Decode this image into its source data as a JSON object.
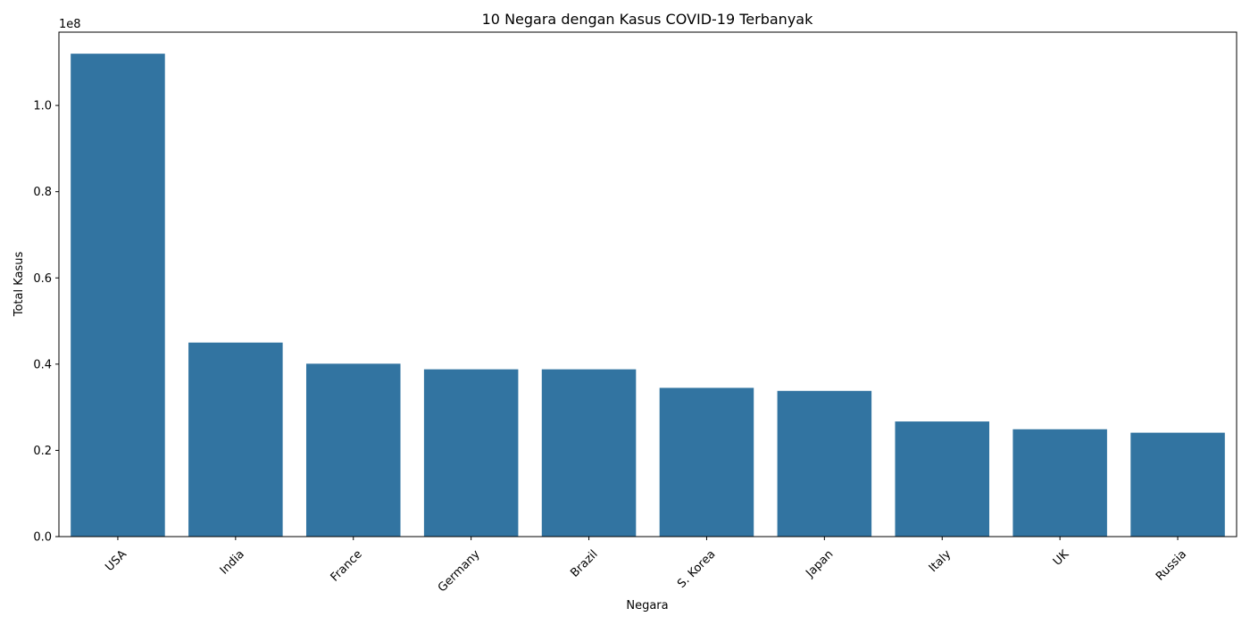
{
  "chart_data": {
    "type": "bar",
    "title": "10 Negara dengan Kasus COVID-19 Terbanyak",
    "xlabel": "Negara",
    "ylabel": "Total Kasus",
    "y_offset_label": "1e8",
    "categories": [
      "USA",
      "India",
      "France",
      "Germany",
      "Brazil",
      "S. Korea",
      "Japan",
      "Italy",
      "UK",
      "Russia"
    ],
    "values": [
      112000000,
      45000000,
      40100000,
      38800000,
      38800000,
      34500000,
      33800000,
      26700000,
      24900000,
      24100000
    ],
    "ylim": [
      0,
      117000000
    ],
    "yticks": [
      0,
      20000000,
      40000000,
      60000000,
      80000000,
      100000000
    ],
    "ytick_labels": [
      "0.0",
      "0.2",
      "0.4",
      "0.6",
      "0.8",
      "1.0"
    ],
    "grid": false,
    "legend": "none",
    "bar_color": "#3274a1",
    "x_tick_rotation": "45 degrees"
  }
}
